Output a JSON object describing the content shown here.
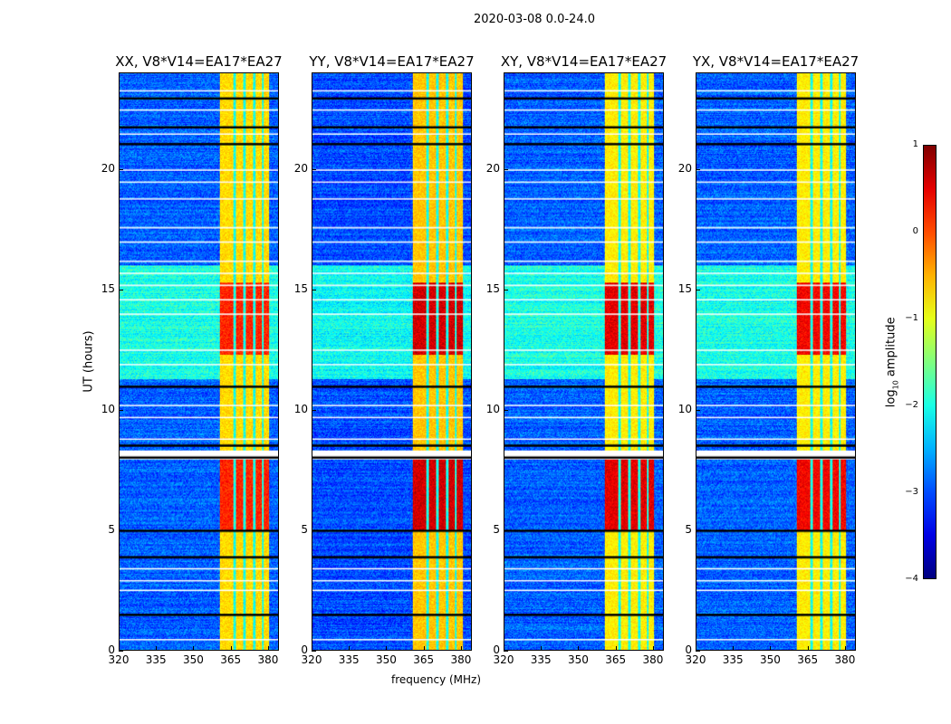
{
  "chart_data": {
    "type": "heatmap",
    "title": "2020-03-08 0.0-24.0",
    "xlabel": "frequency (MHz)",
    "ylabel": "UT (hours)",
    "xlim": [
      320,
      384.4
    ],
    "ylim": [
      0,
      24
    ],
    "xticks": [
      "320",
      "335",
      "350",
      "365",
      "380"
    ],
    "xtick_values": [
      320,
      335,
      350,
      365,
      380
    ],
    "yticks": [
      "0",
      "5",
      "10",
      "15",
      "20"
    ],
    "ytick_values": [
      0,
      5,
      10,
      15,
      20
    ],
    "colorbar": {
      "label_main": "log",
      "label_sub": "10",
      "label_tail": " amplitude",
      "colormap": "jet",
      "range": [
        -4,
        1
      ],
      "ticks": [
        "1",
        "0",
        "−1",
        "−2",
        "−3",
        "−4"
      ],
      "tick_values": [
        1,
        0,
        -1,
        -2,
        -3,
        -4
      ]
    },
    "panels": [
      {
        "title": "XX, V8*V14=EA17*EA27",
        "band_mhz": [
          360.7,
          380.7
        ],
        "band_level": -0.7,
        "hot_level": 0.2,
        "background_level": -2.9
      },
      {
        "title": "YY, V8*V14=EA17*EA27",
        "band_mhz": [
          360.7,
          381
        ],
        "band_level": -0.6,
        "hot_level": 0.6,
        "background_level": -3.0
      },
      {
        "title": "XY, V8*V14=EA17*EA27",
        "band_mhz": [
          360.7,
          380.7
        ],
        "band_level": -0.8,
        "hot_level": 0.5,
        "background_level": -2.9
      },
      {
        "title": "YX, V8*V14=EA17*EA27",
        "band_mhz": [
          360.7,
          380.7
        ],
        "band_level": -0.8,
        "hot_level": 0.4,
        "background_level": -2.9
      }
    ],
    "band_gaps_mhz": [
      366.5,
      370.5,
      374.5,
      378
    ],
    "hot_time_ranges_hr": [
      [
        5.0,
        8.0
      ],
      [
        12.3,
        15.3
      ]
    ],
    "elevated_background_hr": [
      11.3,
      16.0
    ],
    "flagged_white_hr": [
      0.45,
      2.5,
      2.9,
      3.4,
      8.3,
      8.8,
      9.7,
      10.2,
      11.9,
      12.5,
      14.0,
      14.6,
      15.2,
      15.7,
      16.2,
      17.0,
      17.6,
      18.8,
      19.5,
      20.0,
      21.5,
      22.5,
      23.3
    ],
    "flagged_black_hr": [
      1.5,
      3.9,
      5.0,
      8.05,
      8.55,
      11.0,
      21.1,
      21.8,
      23.0
    ]
  }
}
